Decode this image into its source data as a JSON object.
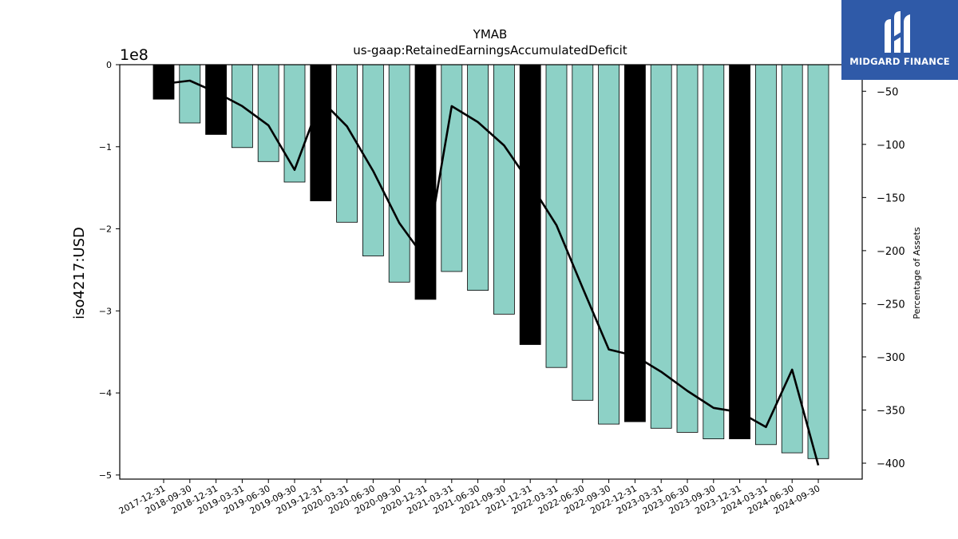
{
  "chart_data": {
    "type": "bar",
    "title": "YMAB",
    "subtitle": "us-gaap:RetainedEarningsAccumulatedDeficit",
    "ylabel": "iso4217:USD",
    "y2label": "Percentage of Assets",
    "y_offset_text": "1e8",
    "ylim": [
      -5.05,
      0
    ],
    "y2lim": [
      -415,
      -25
    ],
    "yticks": [
      0,
      -1,
      -2,
      -3,
      -4,
      -5
    ],
    "y2ticks": [
      -50,
      -100,
      -150,
      -200,
      -250,
      -300,
      -350,
      -400
    ],
    "categories": [
      "2017-12-31",
      "2018-09-30",
      "2018-12-31",
      "2019-03-31",
      "2019-06-30",
      "2019-09-30",
      "2019-12-31",
      "2020-03-31",
      "2020-06-30",
      "2020-09-30",
      "2020-12-31",
      "2021-03-31",
      "2021-06-30",
      "2021-09-30",
      "2021-12-31",
      "2022-03-31",
      "2022-06-30",
      "2022-09-30",
      "2022-12-31",
      "2023-03-31",
      "2023-06-30",
      "2023-09-30",
      "2023-12-31",
      "2024-03-31",
      "2024-06-30",
      "2024-09-30"
    ],
    "series": [
      {
        "values": [
          -0.42,
          -0.71,
          -0.85,
          -1.01,
          -1.18,
          -1.43,
          -1.66,
          -1.92,
          -2.33,
          -2.65,
          -2.86,
          -2.52,
          -2.75,
          -3.04,
          -3.41,
          -3.69,
          -4.09,
          -4.38,
          -4.35,
          -4.43,
          -4.48,
          -4.56,
          -4.56,
          -4.63,
          -4.73,
          -4.8
        ],
        "year_end": [
          true,
          false,
          true,
          false,
          false,
          false,
          true,
          false,
          false,
          false,
          true,
          false,
          false,
          false,
          true,
          false,
          false,
          false,
          true,
          false,
          false,
          false,
          true,
          false,
          false,
          false
        ]
      },
      {
        "name": "Percentage of Assets",
        "values": [
          -43,
          -40,
          -51,
          -64,
          -82,
          -124,
          -58,
          -83,
          -125,
          -174,
          -208,
          -64,
          -79,
          -101,
          -137,
          -176,
          -235,
          -293,
          -299,
          -314,
          -332,
          -348,
          -352,
          -366,
          -312,
          -402
        ]
      }
    ],
    "colors": {
      "bar": "#8dd1c6",
      "bar_year_end": "#000000",
      "line": "#000000"
    },
    "grid": false
  },
  "logo": {
    "text": "MIDGARD FINANCE",
    "icon": "midgard-logo-icon",
    "color": "#2f5aa8"
  }
}
